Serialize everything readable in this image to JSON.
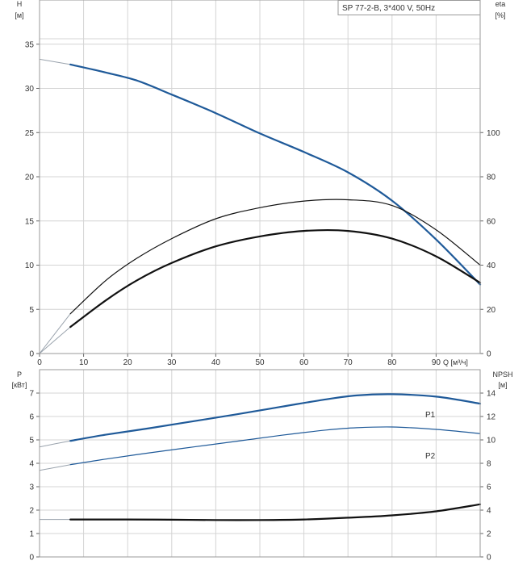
{
  "chart_data": [
    {
      "type": "line",
      "title": "SP 77-2-B, 3*400 V, 50Hz",
      "xlabel": "Q [м³/ч]",
      "ylabel_left": [
        "H",
        "[м]"
      ],
      "ylabel_right": [
        "eta",
        "[%]"
      ],
      "xlim": [
        0,
        100
      ],
      "ylim_left": [
        0,
        40
      ],
      "ylim_right": [
        0,
        160
      ],
      "x_ticks": [
        "0",
        "10",
        "20",
        "30",
        "40",
        "50",
        "60",
        "70",
        "80",
        "90"
      ],
      "y_ticks_left": [
        "0",
        "5",
        "10",
        "15",
        "20",
        "25",
        "30",
        "35"
      ],
      "y_ticks_right": [
        "0",
        "20",
        "40",
        "60",
        "80",
        "100"
      ],
      "grid": true,
      "series": [
        {
          "axis": "left",
          "color": "#1f5a99",
          "x": [
            0,
            7,
            15,
            22,
            30,
            40,
            50,
            60,
            70,
            80,
            90,
            100
          ],
          "y": [
            33.3,
            32.7,
            31.8,
            30.9,
            29.3,
            27.2,
            24.9,
            22.8,
            20.5,
            17.3,
            12.9,
            7.8
          ]
        },
        {
          "axis": "right",
          "color": "#111111",
          "x": [
            0,
            7,
            15,
            22,
            30,
            40,
            50,
            60,
            70,
            80,
            90,
            100
          ],
          "y": [
            0,
            18,
            33,
            43,
            52,
            61,
            66,
            69,
            69.6,
            67,
            56,
            40
          ]
        },
        {
          "axis": "right",
          "color": "#111111",
          "x": [
            0,
            7,
            15,
            22,
            30,
            40,
            50,
            60,
            70,
            80,
            90,
            100
          ],
          "y": [
            0,
            12,
            24,
            33,
            41,
            48.5,
            53,
            55.5,
            55.5,
            52,
            44,
            32
          ]
        }
      ]
    },
    {
      "type": "line",
      "ylabel_left": [
        "P",
        "[кВт]"
      ],
      "ylabel_right": [
        "NPSH",
        "[м]"
      ],
      "xlim": [
        0,
        100
      ],
      "ylim_left": [
        0,
        8
      ],
      "ylim_right": [
        0,
        16
      ],
      "y_ticks_left": [
        "0",
        "1",
        "2",
        "3",
        "4",
        "5",
        "6",
        "7"
      ],
      "y_ticks_right": [
        "0",
        "2",
        "4",
        "6",
        "8",
        "10",
        "12",
        "14"
      ],
      "grid": true,
      "series": [
        {
          "name": "P1",
          "axis": "left",
          "color": "#1f5a99",
          "x": [
            0,
            7,
            15,
            25,
            35,
            45,
            55,
            65,
            72,
            80,
            90,
            100
          ],
          "y": [
            4.7,
            4.96,
            5.22,
            5.5,
            5.8,
            6.1,
            6.42,
            6.73,
            6.9,
            6.95,
            6.85,
            6.55
          ]
        },
        {
          "name": "P2",
          "axis": "left",
          "color": "#1f5a99",
          "x": [
            0,
            7,
            15,
            25,
            35,
            45,
            55,
            65,
            72,
            80,
            90,
            100
          ],
          "y": [
            3.7,
            3.94,
            4.18,
            4.45,
            4.7,
            4.95,
            5.2,
            5.42,
            5.52,
            5.55,
            5.45,
            5.27
          ]
        },
        {
          "axis": "right",
          "color": "#111111",
          "x": [
            0,
            7,
            20,
            30,
            40,
            50,
            60,
            70,
            80,
            90,
            100
          ],
          "y": [
            3.2,
            3.2,
            3.2,
            3.18,
            3.15,
            3.15,
            3.2,
            3.35,
            3.55,
            3.9,
            4.5
          ]
        }
      ]
    }
  ]
}
